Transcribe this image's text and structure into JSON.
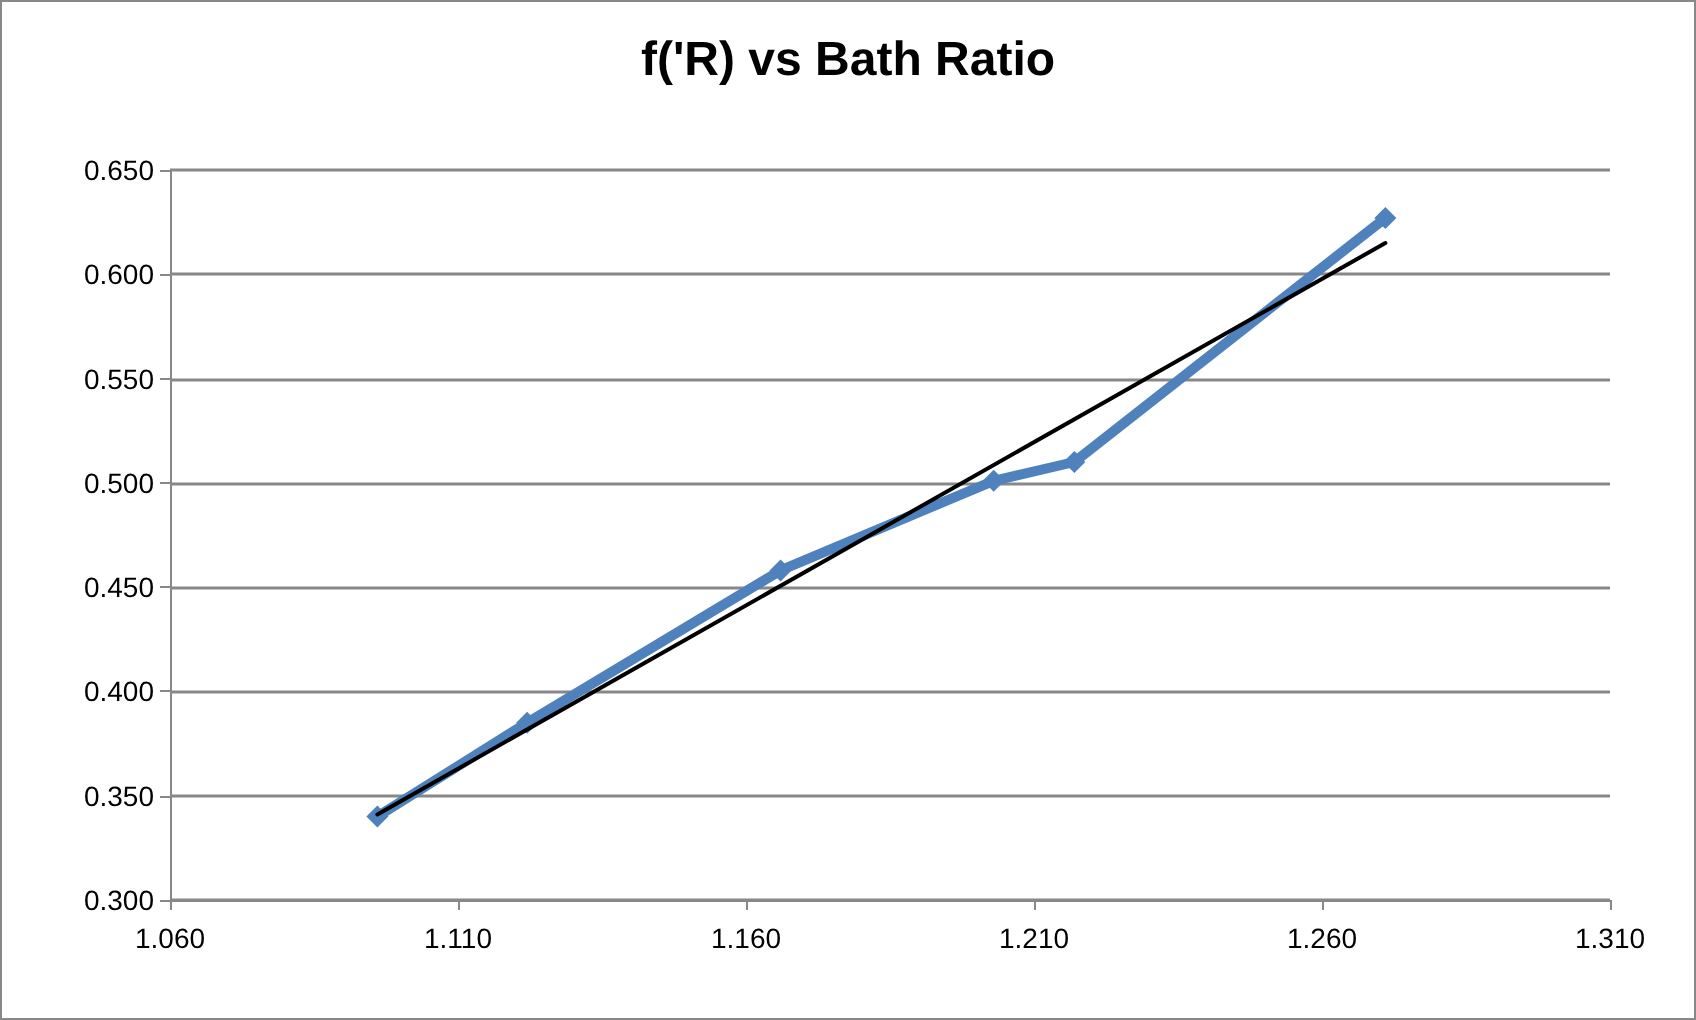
{
  "chart_data": {
    "type": "line",
    "title": "f('R) vs Bath Ratio",
    "xlim": [
      1.06,
      1.31
    ],
    "xticks": [
      {
        "value": 1.06,
        "label": "1.060"
      },
      {
        "value": 1.11,
        "label": "1.110"
      },
      {
        "value": 1.16,
        "label": "1.160"
      },
      {
        "value": 1.21,
        "label": "1.210"
      },
      {
        "value": 1.26,
        "label": "1.260"
      },
      {
        "value": 1.31,
        "label": "1.310"
      }
    ],
    "ylim": [
      0.3,
      0.65
    ],
    "yticks": [
      {
        "value": 0.3,
        "label": "0.300"
      },
      {
        "value": 0.35,
        "label": "0.350"
      },
      {
        "value": 0.4,
        "label": "0.400"
      },
      {
        "value": 0.45,
        "label": "0.450"
      },
      {
        "value": 0.5,
        "label": "0.500"
      },
      {
        "value": 0.55,
        "label": "0.550"
      },
      {
        "value": 0.6,
        "label": "0.600"
      },
      {
        "value": 0.65,
        "label": "0.650"
      }
    ],
    "grid": "y",
    "series": [
      {
        "color": "#4f81bd",
        "marker": "diamond",
        "x": [
          1.096,
          1.122,
          1.166,
          1.203,
          1.217,
          1.271
        ],
        "values": [
          0.34,
          0.385,
          0.458,
          0.501,
          0.51,
          0.627
        ]
      },
      {
        "color": "#000000",
        "marker": "none",
        "x": [
          1.096,
          1.271
        ],
        "values": [
          0.341,
          0.615
        ]
      }
    ]
  }
}
